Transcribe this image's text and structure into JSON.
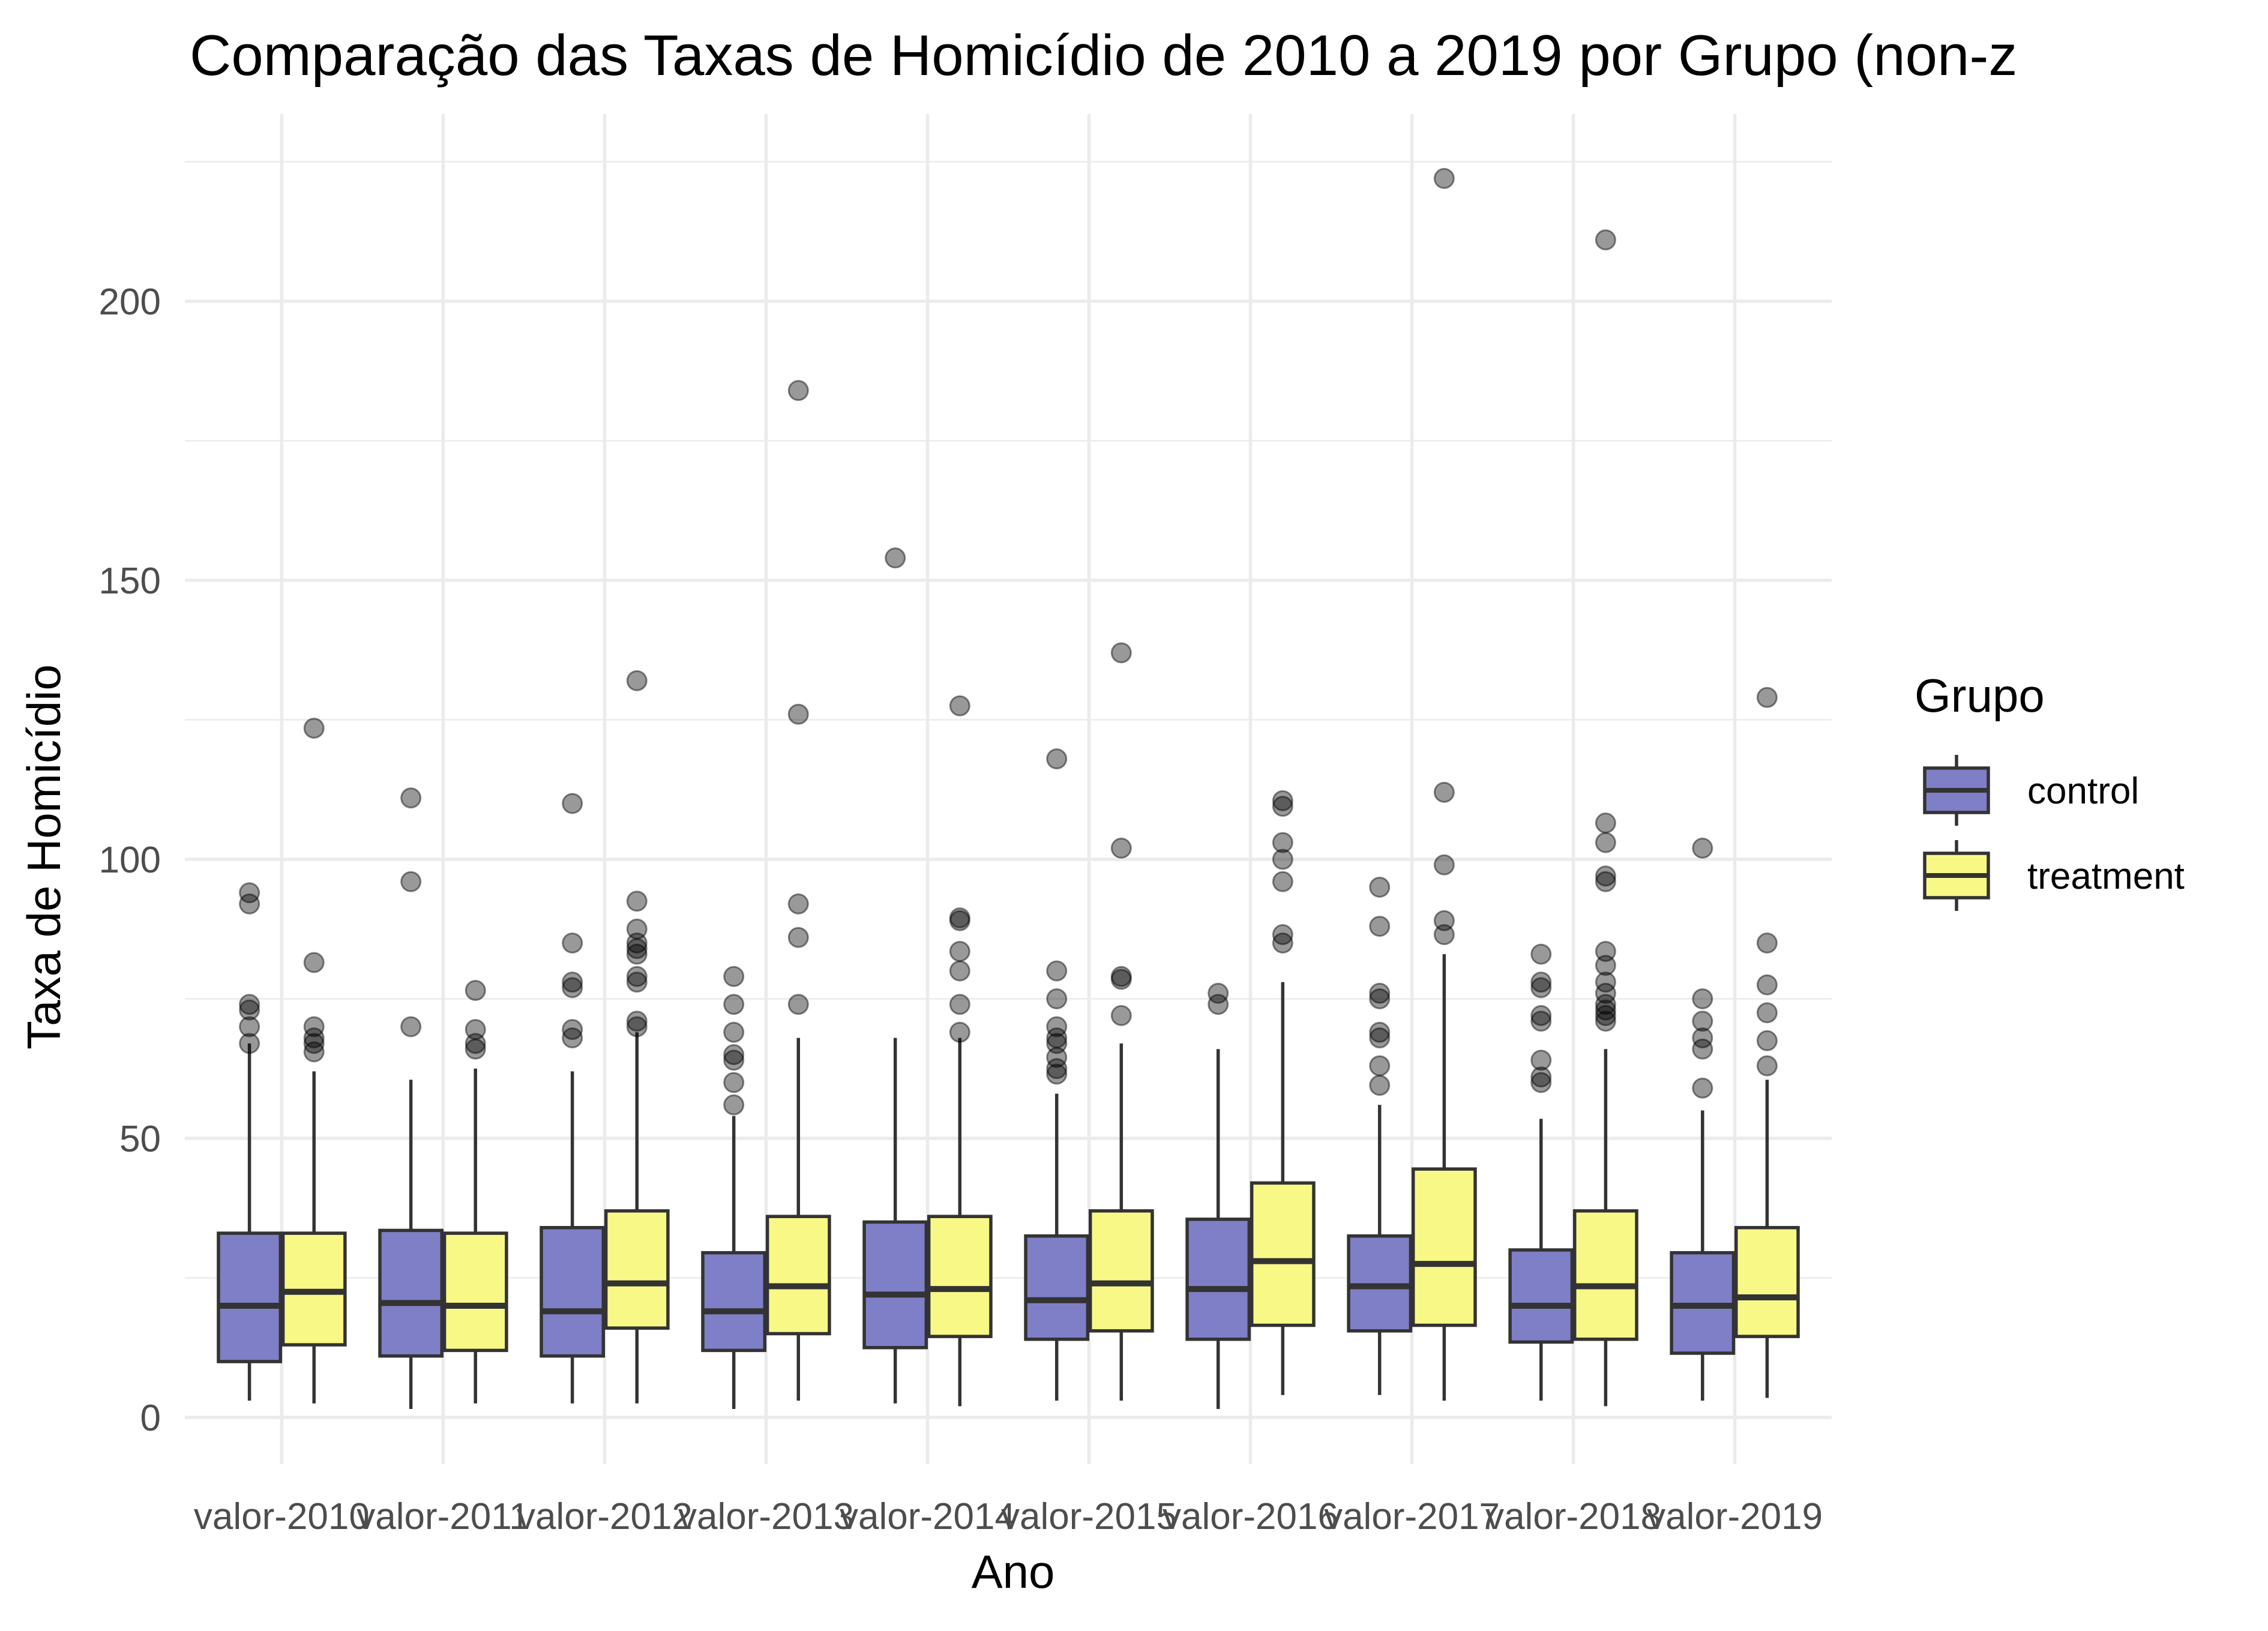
{
  "chart_data": {
    "type": "boxplot",
    "title": "Comparação das Taxas de Homicídio de 2010 a 2019 por Grupo (non-z",
    "xlabel": "Ano",
    "ylabel": "Taxa de Homicídio",
    "categories": [
      "valor-2010",
      "valor-2011",
      "valor-2012",
      "valor-2013",
      "valor-2014",
      "valor-2015",
      "valor-2016",
      "valor-2017",
      "valor-2018",
      "valor-2019"
    ],
    "yticks": [
      "0",
      "50",
      "100",
      "150",
      "200"
    ],
    "ylim": [
      -8,
      228
    ],
    "grid": true,
    "legend": {
      "title": "Grupo",
      "placement": "right"
    },
    "series": [
      {
        "name": "control",
        "color": "#7f7fc7",
        "boxes": [
          {
            "whislo": 3,
            "q1": 10,
            "med": 20,
            "q3": 33,
            "whishi": 67,
            "fliers": [
              67,
              70,
              73,
              74,
              92,
              94
            ]
          },
          {
            "whislo": 1.5,
            "q1": 11,
            "med": 20.5,
            "q3": 33.5,
            "whishi": 60.5,
            "fliers": [
              70,
              96,
              111
            ]
          },
          {
            "whislo": 2.5,
            "q1": 11,
            "med": 19,
            "q3": 34,
            "whishi": 62,
            "fliers": [
              68,
              69.5,
              77,
              78,
              85,
              110
            ]
          },
          {
            "whislo": 1.5,
            "q1": 12,
            "med": 19,
            "q3": 29.5,
            "whishi": 54,
            "fliers": [
              56,
              60,
              64,
              65,
              69,
              74,
              79
            ]
          },
          {
            "whislo": 2.5,
            "q1": 12.5,
            "med": 22,
            "q3": 35,
            "whishi": 68,
            "fliers": [
              154
            ]
          },
          {
            "whislo": 3,
            "q1": 14,
            "med": 21,
            "q3": 32.5,
            "whishi": 58,
            "fliers": [
              61.5,
              62.5,
              64.5,
              67,
              68,
              70,
              75,
              80,
              118
            ]
          },
          {
            "whislo": 1.5,
            "q1": 14,
            "med": 23,
            "q3": 35.5,
            "whishi": 66,
            "fliers": [
              74,
              76
            ]
          },
          {
            "whislo": 4,
            "q1": 15.5,
            "med": 23.5,
            "q3": 32.5,
            "whishi": 56,
            "fliers": [
              59.5,
              63,
              68,
              69,
              75,
              76,
              88,
              95
            ]
          },
          {
            "whislo": 3,
            "q1": 13.5,
            "med": 20,
            "q3": 30,
            "whishi": 53.5,
            "fliers": [
              60,
              61,
              64,
              71,
              72,
              77,
              78,
              83
            ]
          },
          {
            "whislo": 3,
            "q1": 11.5,
            "med": 20,
            "q3": 29.5,
            "whishi": 55,
            "fliers": [
              59,
              66,
              68,
              71,
              75,
              102
            ]
          }
        ]
      },
      {
        "name": "treatment",
        "color": "#f8f887",
        "boxes": [
          {
            "whislo": 2.5,
            "q1": 13,
            "med": 22.5,
            "q3": 33,
            "whishi": 62,
            "fliers": [
              65.5,
              67,
              68,
              70,
              81.5,
              123.5
            ]
          },
          {
            "whislo": 2.5,
            "q1": 12,
            "med": 20,
            "q3": 33,
            "whishi": 62.5,
            "fliers": [
              66,
              67,
              69.5,
              76.5
            ]
          },
          {
            "whislo": 2.5,
            "q1": 16,
            "med": 24,
            "q3": 37,
            "whishi": 69,
            "fliers": [
              70,
              71,
              78,
              79,
              83,
              84,
              85,
              87.5,
              92.5,
              132
            ]
          },
          {
            "whislo": 3,
            "q1": 15,
            "med": 23.5,
            "q3": 36,
            "whishi": 68,
            "fliers": [
              74,
              86,
              92,
              126,
              184
            ]
          },
          {
            "whislo": 2,
            "q1": 14.5,
            "med": 23,
            "q3": 36,
            "whishi": 68,
            "fliers": [
              69,
              74,
              80,
              83.5,
              89,
              89.5,
              127.5
            ]
          },
          {
            "whislo": 3,
            "q1": 15.5,
            "med": 24,
            "q3": 37,
            "whishi": 67,
            "fliers": [
              72,
              78.5,
              79,
              102,
              137
            ]
          },
          {
            "whislo": 4,
            "q1": 16.5,
            "med": 28,
            "q3": 42,
            "whishi": 78,
            "fliers": [
              85,
              86.5,
              96,
              100,
              103,
              109.5,
              110.5
            ]
          },
          {
            "whislo": 3,
            "q1": 16.5,
            "med": 27.5,
            "q3": 44.5,
            "whishi": 83,
            "fliers": [
              86.5,
              89,
              99,
              112,
              222
            ]
          },
          {
            "whislo": 2,
            "q1": 14,
            "med": 23.5,
            "q3": 37,
            "whishi": 66,
            "fliers": [
              71,
              72,
              73,
              74,
              76,
              78,
              81,
              83.5,
              96,
              97,
              103,
              106.5,
              211
            ]
          },
          {
            "whislo": 3.5,
            "q1": 14.5,
            "med": 21.5,
            "q3": 34,
            "whishi": 60.5,
            "fliers": [
              63,
              67.5,
              72.5,
              77.5,
              85,
              129
            ]
          }
        ]
      }
    ]
  }
}
